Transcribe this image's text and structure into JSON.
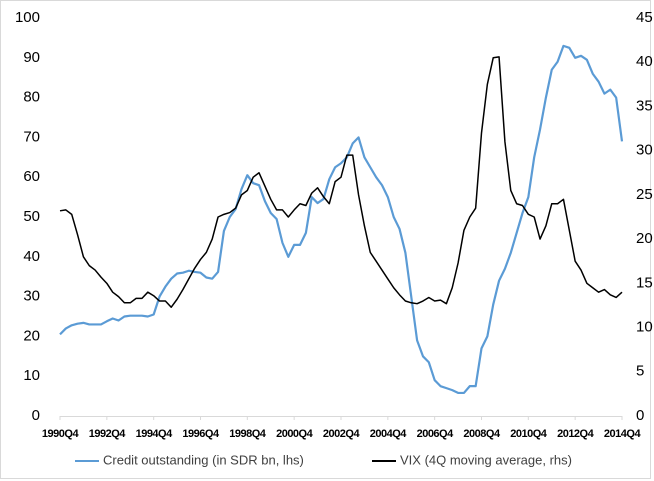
{
  "chart_data": {
    "type": "line",
    "categories": [
      "1990Q4",
      null,
      null,
      null,
      null,
      null,
      null,
      null,
      "1992Q4",
      null,
      null,
      null,
      null,
      null,
      null,
      null,
      "1994Q4",
      null,
      null,
      null,
      null,
      null,
      null,
      null,
      "1996Q4",
      null,
      null,
      null,
      null,
      null,
      null,
      null,
      "1998Q4",
      null,
      null,
      null,
      null,
      null,
      null,
      null,
      "2000Q4",
      null,
      null,
      null,
      null,
      null,
      null,
      null,
      "2002Q4",
      null,
      null,
      null,
      null,
      null,
      null,
      null,
      "2004Q4",
      null,
      null,
      null,
      null,
      null,
      null,
      null,
      "2006Q4",
      null,
      null,
      null,
      null,
      null,
      null,
      null,
      "2008Q4",
      null,
      null,
      null,
      null,
      null,
      null,
      null,
      "2010Q4",
      null,
      null,
      null,
      null,
      null,
      null,
      null,
      "2012Q4",
      null,
      null,
      null,
      null,
      null,
      null,
      null,
      "2014Q4"
    ],
    "series": [
      {
        "name": "Credit outstanding (in SDR bn, lhs)",
        "color": "#5b9bd5",
        "axis": "y",
        "values": [
          20.5,
          22,
          22.8,
          23.2,
          23.4,
          23,
          23,
          23,
          23.8,
          24.5,
          24,
          25,
          25.2,
          25.2,
          25.2,
          25,
          25.5,
          30,
          32.5,
          34.5,
          35.8,
          36,
          36.5,
          36.2,
          36,
          34.8,
          34.5,
          36.2,
          46.5,
          50,
          52,
          57,
          60.5,
          58.5,
          58,
          54,
          51,
          49.5,
          43.5,
          40,
          43,
          43,
          46,
          55,
          53.5,
          54.5,
          59.5,
          62.5,
          63.5,
          65,
          68.5,
          70,
          65,
          62.5,
          60,
          58,
          55,
          50,
          47,
          41,
          30,
          19,
          15,
          13.5,
          9,
          7.5,
          7,
          6.5,
          5.8,
          5.8,
          7.5,
          7.5,
          17,
          20,
          28,
          34,
          37,
          41,
          46,
          51,
          55,
          65,
          72,
          80,
          87,
          89,
          93,
          92.5,
          90,
          90.5,
          89.5,
          86,
          84,
          81,
          82,
          80,
          69
        ]
      },
      {
        "name": "VIX (4Q moving average, rhs)",
        "color": "#000000",
        "axis": "y2",
        "values": [
          23.2,
          23.3,
          22.8,
          20.5,
          18,
          17,
          16.5,
          15.7,
          15,
          14,
          13.5,
          12.8,
          12.8,
          13.3,
          13.3,
          14,
          13.6,
          13,
          13,
          12.3,
          13.2,
          14.3,
          15.5,
          16.7,
          17.7,
          18.5,
          20,
          22.5,
          22.8,
          23,
          23.5,
          25,
          25.5,
          27,
          27.5,
          26,
          24.5,
          23.3,
          23.3,
          22.5,
          23.3,
          24,
          23.8,
          25.2,
          25.8,
          24.8,
          24,
          26.5,
          27,
          29.5,
          29.5,
          25,
          21.5,
          18.5,
          17.5,
          16.5,
          15.5,
          14.5,
          13.7,
          13,
          12.8,
          12.7,
          13,
          13.4,
          13,
          13.1,
          12.7,
          14.5,
          17.3,
          21,
          22.5,
          23.5,
          32,
          37.5,
          40.5,
          40.6,
          31,
          25.5,
          24,
          23.8,
          22.8,
          22.5,
          20,
          21.5,
          24,
          24,
          24.5,
          21,
          17.5,
          16.5,
          15,
          14.5,
          14,
          14.3,
          13.7,
          13.4,
          14
        ]
      }
    ],
    "ylim": [
      0,
      100
    ],
    "yticks": [
      0,
      10,
      20,
      30,
      40,
      50,
      60,
      70,
      80,
      90,
      100
    ],
    "y2lim": [
      0,
      45
    ],
    "y2ticks": [
      0,
      5,
      10,
      15,
      20,
      25,
      30,
      35,
      40,
      45
    ],
    "grid": false,
    "legend": "bottom"
  }
}
